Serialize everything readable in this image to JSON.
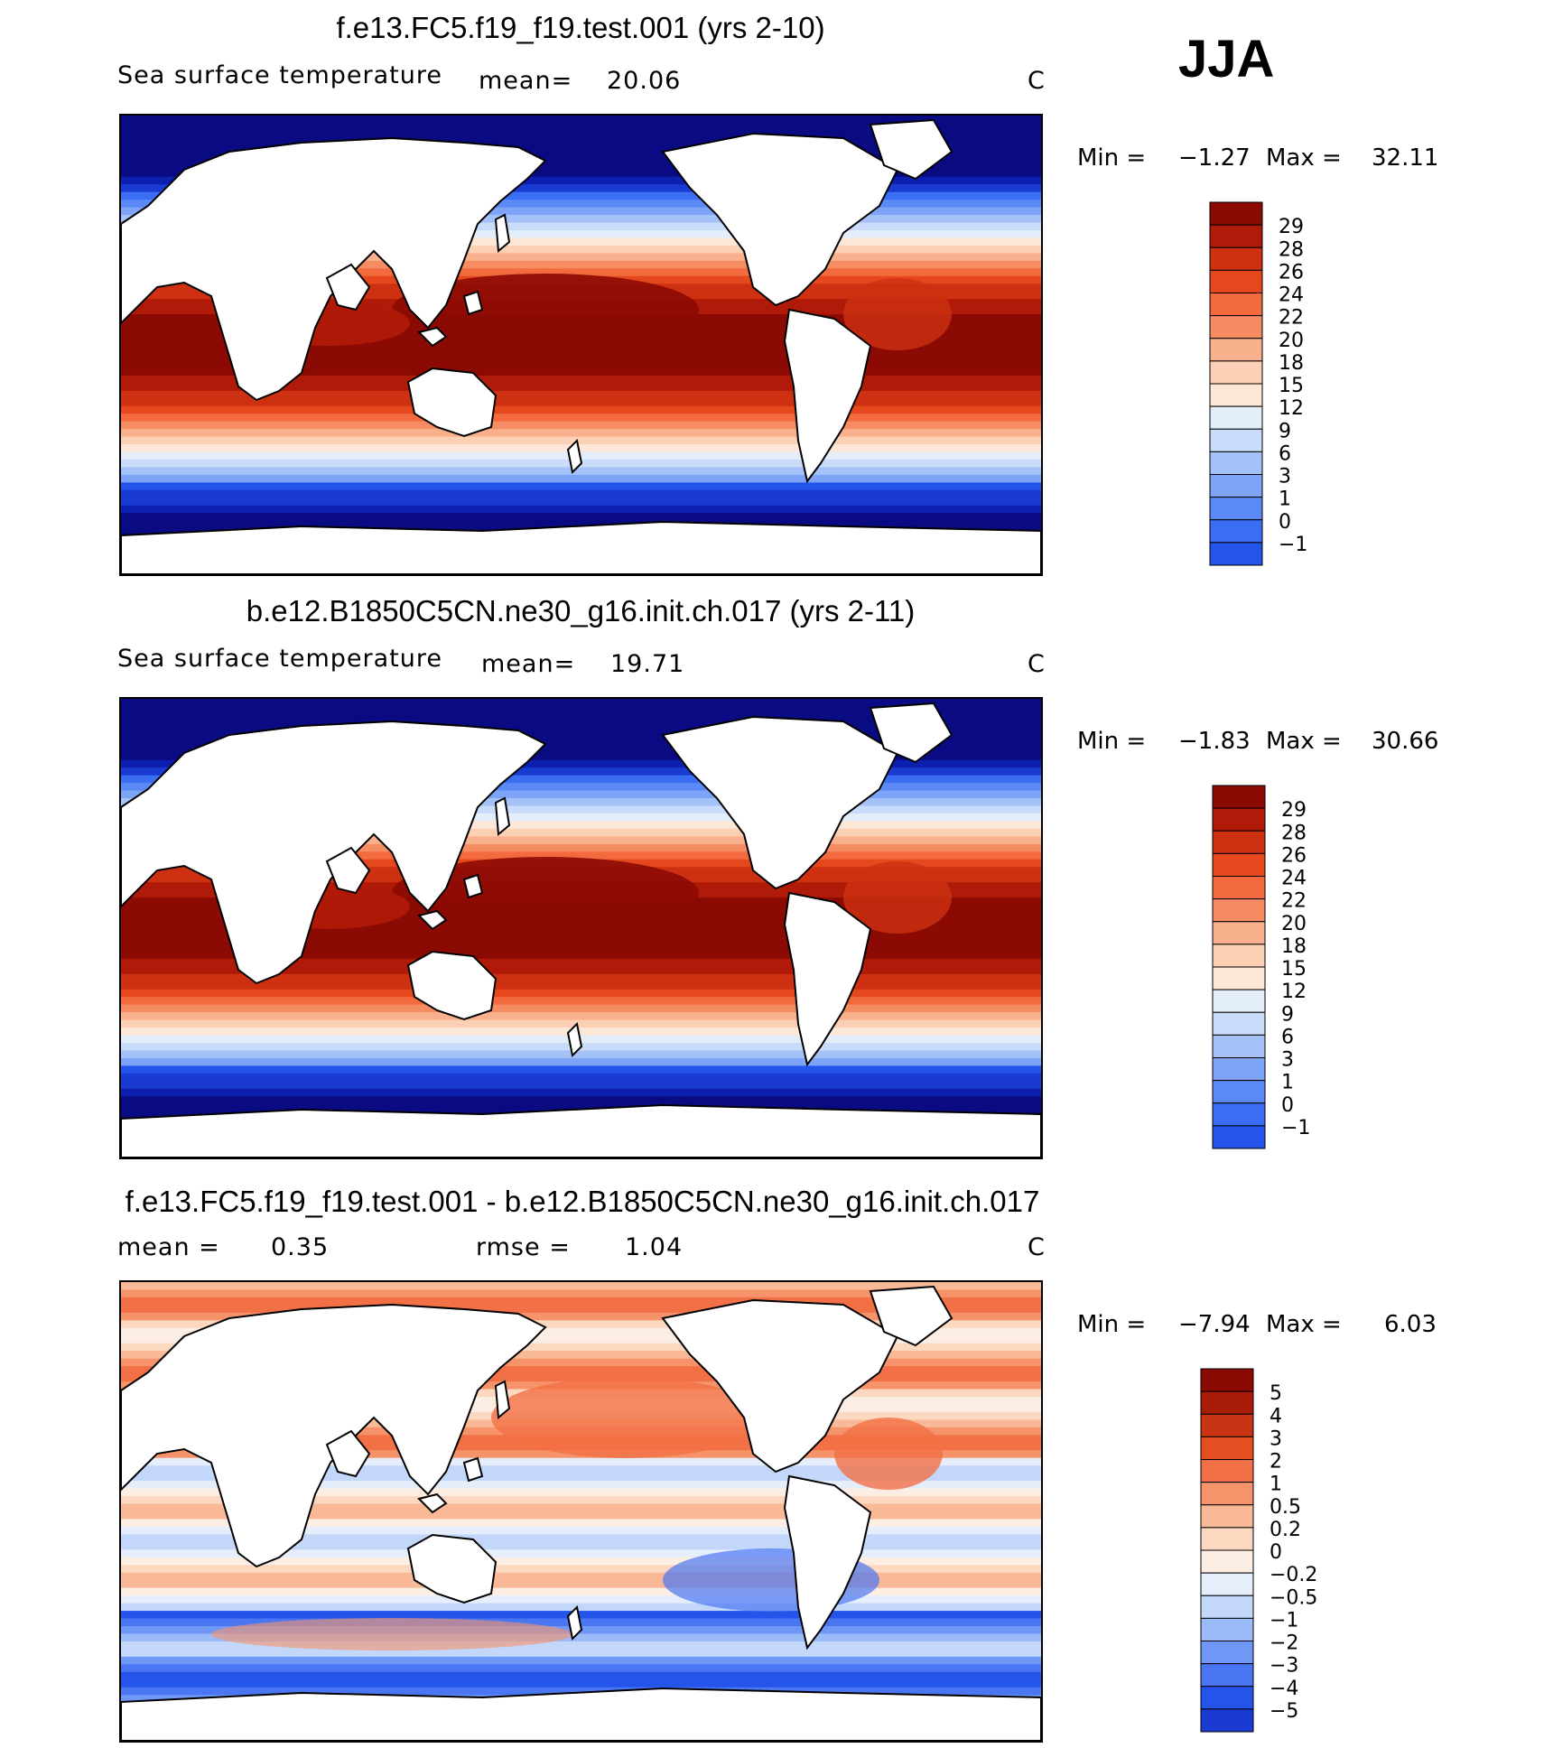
{
  "season": "JJA",
  "units": "C",
  "panels": [
    {
      "title": "f.e13.FC5.f19_f19.test.001 (yrs 2-10)",
      "variable": "Sea surface temperature",
      "mean_label": "mean=",
      "mean_value": "20.06",
      "min_label": "Min =",
      "min_value": "−1.27",
      "max_label": "Max =",
      "max_value": "32.11",
      "legend_levels": [
        "29",
        "28",
        "26",
        "24",
        "22",
        "20",
        "18",
        "15",
        "12",
        "9",
        "6",
        "3",
        "1",
        "0",
        "−1"
      ]
    },
    {
      "title": "b.e12.B1850C5CN.ne30_g16.init.ch.017 (yrs 2-11)",
      "variable": "Sea surface temperature",
      "mean_label": "mean=",
      "mean_value": "19.71",
      "min_label": "Min =",
      "min_value": "−1.83",
      "max_label": "Max =",
      "max_value": "30.66",
      "legend_levels": [
        "29",
        "28",
        "26",
        "24",
        "22",
        "20",
        "18",
        "15",
        "12",
        "9",
        "6",
        "3",
        "1",
        "0",
        "−1"
      ]
    },
    {
      "title": "f.e13.FC5.f19_f19.test.001 - b.e12.B1850C5CN.ne30_g16.init.ch.017",
      "mean_label": "mean =",
      "mean_value": "0.35",
      "rmse_label": "rmse =",
      "rmse_value": "1.04",
      "min_label": "Min =",
      "min_value": "−7.94",
      "max_label": "Max =",
      "max_value": "6.03",
      "legend_levels": [
        "5",
        "4",
        "3",
        "2",
        "1",
        "0.5",
        "0.2",
        "0",
        "−0.2",
        "−0.5",
        "−1",
        "−2",
        "−3",
        "−4",
        "−5"
      ]
    }
  ],
  "colormaps": {
    "sst": [
      "#0a0a82",
      "#0d1fae",
      "#1a3bd2",
      "#2454ea",
      "#3b6ef2",
      "#5b89f5",
      "#7ea4f7",
      "#a5c2f8",
      "#c9dcf9",
      "#e4eefb",
      "#fde8d8",
      "#fcd0b4",
      "#f9b08d",
      "#f68c62",
      "#f26a3d",
      "#e5481d",
      "#cd3112",
      "#b01a08",
      "#8c0a04"
    ],
    "diff": [
      "#0a0a82",
      "#0d1fae",
      "#1a3bd2",
      "#2454ea",
      "#4a76f2",
      "#6e97f6",
      "#9bbaf8",
      "#c3d7fa",
      "#e6eefc",
      "#fdeee4",
      "#fcd8c0",
      "#f9b896",
      "#f6936a",
      "#f27045",
      "#e54e21",
      "#c93414",
      "#a81c08",
      "#8c0a04"
    ]
  }
}
